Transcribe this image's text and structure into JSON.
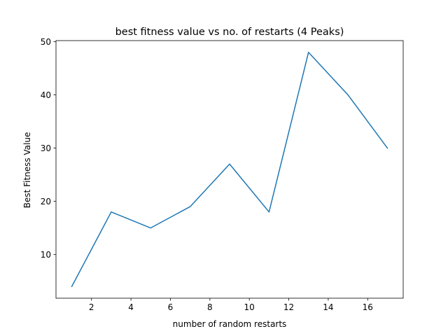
{
  "chart_data": {
    "type": "line",
    "title": "best fitness value vs no. of restarts (4 Peaks)",
    "xlabel": "number of random restarts",
    "ylabel": "Best Fitness Value",
    "xlim": [
      0.2,
      17.8
    ],
    "ylim": [
      1.8,
      50.2
    ],
    "xticks": [
      2,
      4,
      6,
      8,
      10,
      12,
      14,
      16
    ],
    "yticks": [
      10,
      20,
      30,
      40,
      50
    ],
    "grid": false,
    "legend": "none",
    "series": [
      {
        "color": "#1f77b4",
        "x": [
          1,
          3,
          5,
          7,
          9,
          11,
          13,
          15,
          17
        ],
        "y": [
          4,
          18,
          15,
          19,
          27,
          18,
          48,
          40,
          30
        ]
      }
    ]
  }
}
